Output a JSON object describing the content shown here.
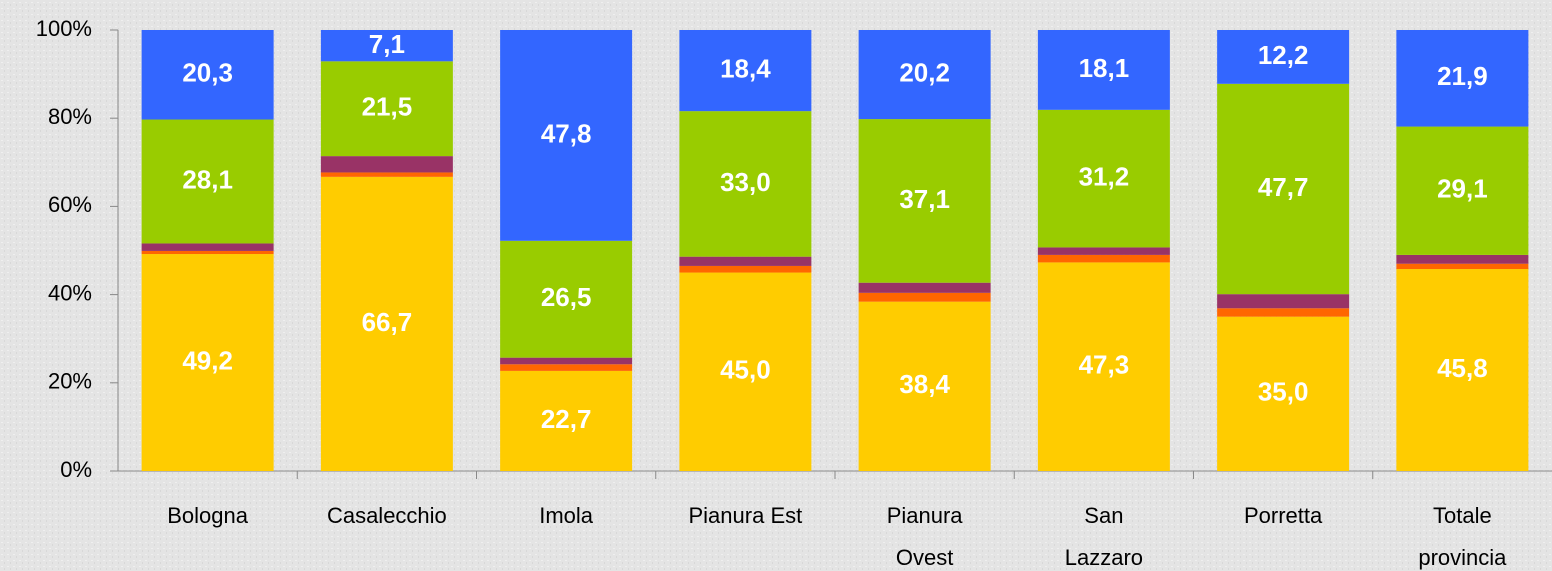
{
  "chart_data": {
    "type": "stacked_bar_100",
    "categories": [
      "Bologna",
      "Casalecchio",
      "Imola",
      "Pianura Est",
      "Pianura\nOvest",
      "San\nLazzaro",
      "Porretta",
      "Totale\nprovincia"
    ],
    "series": [
      {
        "color": "#ffcc00",
        "values": [
          49.2,
          66.7,
          22.7,
          45.0,
          38.4,
          47.3,
          35.0,
          45.8
        ],
        "value_labels": [
          "49,2",
          "66,7",
          "22,7",
          "45,0",
          "38,4",
          "47,3",
          "35,0",
          "45,8"
        ]
      },
      {
        "color": "#ff6600",
        "values": [
          0.7,
          1.0,
          1.5,
          1.5,
          2.0,
          1.7,
          1.9,
          1.2
        ]
      },
      {
        "color": "#993366",
        "values": [
          1.7,
          3.7,
          1.5,
          2.1,
          2.3,
          1.7,
          3.2,
          2.0
        ]
      },
      {
        "color": "#99cc00",
        "values": [
          28.1,
          21.5,
          26.5,
          33.0,
          37.1,
          31.2,
          47.7,
          29.1
        ],
        "value_labels": [
          "28,1",
          "21,5",
          "26,5",
          "33,0",
          "37,1",
          "31,2",
          "47,7",
          "29,1"
        ]
      },
      {
        "color": "#3366ff",
        "values": [
          20.3,
          7.1,
          47.8,
          18.4,
          20.2,
          18.1,
          12.2,
          21.9
        ],
        "value_labels": [
          "20,3",
          "7,1",
          "47,8",
          "18,4",
          "20,2",
          "18,1",
          "12,2",
          "21,9"
        ]
      }
    ],
    "ylim": [
      0,
      100
    ],
    "yticks": [
      {
        "value": 0,
        "label": "0%"
      },
      {
        "value": 20,
        "label": "20%"
      },
      {
        "value": 40,
        "label": "40%"
      },
      {
        "value": 60,
        "label": "60%"
      },
      {
        "value": 80,
        "label": "80%"
      },
      {
        "value": 100,
        "label": "100%"
      }
    ],
    "grid": false
  }
}
